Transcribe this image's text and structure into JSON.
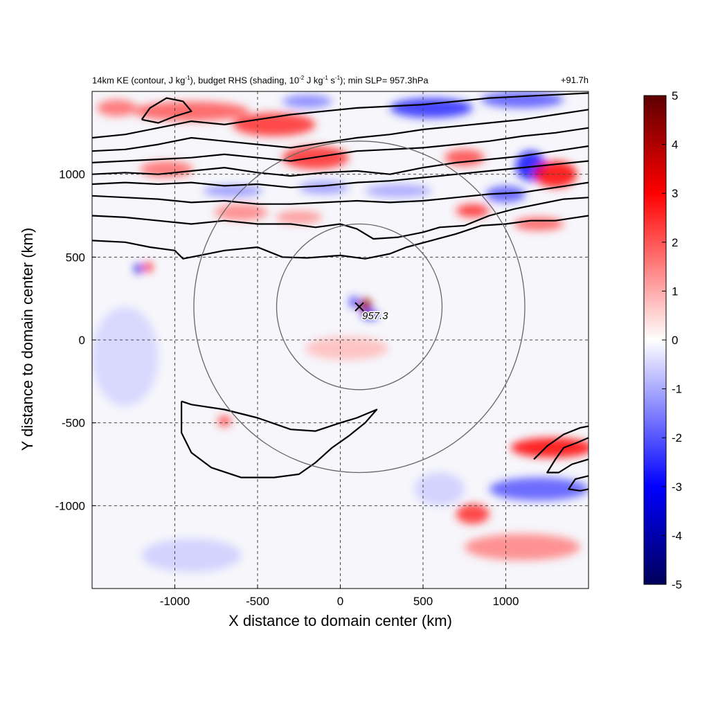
{
  "title_parts": {
    "p1": "14km KE (contour, J kg",
    "p1_sup": "-1",
    "p2": "), budget RHS (shading, 10",
    "p2_sup": "-2",
    "p3": " J kg",
    "p3_sup": "-1",
    "p4": " s",
    "p4_sup": "-1",
    "p5": "); min SLP= 957.3hPa"
  },
  "forecast_hour": "+91.7h",
  "chart_data": {
    "type": "heatmap",
    "xlabel": "X distance to domain center (km)",
    "ylabel": "Y distance to domain center (km)",
    "xlim": [
      -1500,
      1500
    ],
    "ylim": [
      -1500,
      1500
    ],
    "x_ticks": [
      -1000,
      -500,
      0,
      500,
      1000
    ],
    "y_ticks": [
      -1000,
      -500,
      0,
      500,
      1000
    ],
    "x_tick_labels": [
      "-1000",
      "-500",
      "0",
      "500",
      "1000"
    ],
    "y_tick_labels": [
      "-1000",
      "-500",
      "0",
      "500",
      "1000"
    ],
    "grid": "dashed",
    "colorbar": {
      "min": -5,
      "max": 5,
      "ticks": [
        5,
        4,
        3,
        2,
        1,
        0,
        -1,
        -2,
        -3,
        -4,
        -5
      ],
      "tick_labels": [
        "5",
        "4",
        "3",
        "2",
        "1",
        "0",
        "-1",
        "-2",
        "-3",
        "-4",
        "-5"
      ],
      "colormap": [
        "#00005a",
        "#0000ff",
        "#ffffff",
        "#ff0000",
        "#6a0000"
      ]
    },
    "storm_center": {
      "x": 115,
      "y": 200,
      "label": "957.3",
      "marker": "x"
    },
    "range_rings": [
      {
        "center_x": 115,
        "center_y": 200,
        "radius": 500
      },
      {
        "center_x": 115,
        "center_y": 200,
        "radius": 1000
      }
    ],
    "ke_contours": [
      [
        [
          -1500,
          600
        ],
        [
          -1300,
          590
        ],
        [
          -1150,
          560
        ],
        [
          -1000,
          540
        ],
        [
          -950,
          490
        ],
        [
          -850,
          510
        ],
        [
          -700,
          540
        ],
        [
          -500,
          560
        ],
        [
          -350,
          500
        ],
        [
          -200,
          495
        ],
        [
          0,
          510
        ],
        [
          150,
          490
        ],
        [
          300,
          520
        ],
        [
          400,
          560
        ],
        [
          550,
          600
        ],
        [
          700,
          640
        ],
        [
          850,
          690
        ],
        [
          1000,
          700
        ],
        [
          1150,
          720
        ],
        [
          1300,
          720
        ],
        [
          1500,
          750
        ]
      ],
      [
        [
          -1500,
          750
        ],
        [
          -1300,
          740
        ],
        [
          -1100,
          720
        ],
        [
          -900,
          700
        ],
        [
          -700,
          720
        ],
        [
          -500,
          700
        ],
        [
          -300,
          700
        ],
        [
          -150,
          680
        ],
        [
          0,
          700
        ],
        [
          100,
          670
        ],
        [
          150,
          640
        ],
        [
          200,
          610
        ],
        [
          350,
          620
        ],
        [
          500,
          650
        ],
        [
          600,
          680
        ],
        [
          750,
          690
        ],
        [
          900,
          750
        ],
        [
          1050,
          790
        ],
        [
          1200,
          820
        ],
        [
          1350,
          850
        ],
        [
          1500,
          860
        ]
      ],
      [
        [
          -1500,
          870
        ],
        [
          -1300,
          860
        ],
        [
          -1100,
          850
        ],
        [
          -900,
          830
        ],
        [
          -700,
          840
        ],
        [
          -500,
          820
        ],
        [
          -300,
          820
        ],
        [
          -100,
          830
        ],
        [
          100,
          840
        ],
        [
          300,
          830
        ],
        [
          500,
          840
        ],
        [
          700,
          860
        ],
        [
          900,
          880
        ],
        [
          1100,
          890
        ],
        [
          1300,
          920
        ],
        [
          1500,
          950
        ]
      ],
      [
        [
          -1500,
          940
        ],
        [
          -1300,
          950
        ],
        [
          -1100,
          940
        ],
        [
          -900,
          950
        ],
        [
          -700,
          930
        ],
        [
          -500,
          940
        ],
        [
          -300,
          920
        ],
        [
          -100,
          930
        ],
        [
          100,
          950
        ],
        [
          300,
          960
        ],
        [
          500,
          980
        ],
        [
          700,
          1000
        ],
        [
          900,
          1020
        ],
        [
          1100,
          1040
        ],
        [
          1300,
          1060
        ],
        [
          1500,
          1080
        ]
      ],
      [
        [
          -1500,
          1000
        ],
        [
          -1300,
          1010
        ],
        [
          -1100,
          1000
        ],
        [
          -900,
          1020
        ],
        [
          -700,
          1040
        ],
        [
          -500,
          1010
        ],
        [
          -300,
          990
        ],
        [
          -100,
          1010
        ],
        [
          100,
          1020
        ],
        [
          300,
          1000
        ],
        [
          500,
          1040
        ],
        [
          700,
          1070
        ],
        [
          900,
          1090
        ],
        [
          1100,
          1110
        ],
        [
          1300,
          1140
        ],
        [
          1500,
          1170
        ]
      ],
      [
        [
          -1500,
          1070
        ],
        [
          -1300,
          1080
        ],
        [
          -1100,
          1090
        ],
        [
          -900,
          1100
        ],
        [
          -700,
          1120
        ],
        [
          -500,
          1100
        ],
        [
          -300,
          1080
        ],
        [
          -100,
          1110
        ],
        [
          100,
          1140
        ],
        [
          300,
          1150
        ],
        [
          500,
          1160
        ],
        [
          700,
          1180
        ],
        [
          900,
          1200
        ],
        [
          1100,
          1230
        ],
        [
          1300,
          1250
        ],
        [
          1500,
          1280
        ]
      ],
      [
        [
          -1500,
          1140
        ],
        [
          -1300,
          1150
        ],
        [
          -1100,
          1180
        ],
        [
          -900,
          1220
        ],
        [
          -700,
          1200
        ],
        [
          -500,
          1180
        ],
        [
          -300,
          1160
        ],
        [
          -100,
          1190
        ],
        [
          100,
          1220
        ],
        [
          300,
          1240
        ],
        [
          500,
          1270
        ],
        [
          700,
          1290
        ],
        [
          900,
          1310
        ],
        [
          1100,
          1330
        ],
        [
          1300,
          1360
        ],
        [
          1500,
          1390
        ]
      ],
      [
        [
          -1500,
          1220
        ],
        [
          -1300,
          1240
        ],
        [
          -1100,
          1280
        ],
        [
          -900,
          1320
        ],
        [
          -700,
          1300
        ],
        [
          -500,
          1330
        ],
        [
          -300,
          1360
        ],
        [
          -100,
          1380
        ],
        [
          100,
          1400
        ],
        [
          300,
          1410
        ],
        [
          500,
          1420
        ],
        [
          700,
          1440
        ],
        [
          900,
          1460
        ],
        [
          1100,
          1470
        ],
        [
          1300,
          1480
        ],
        [
          1500,
          1490
        ]
      ],
      [
        [
          -1200,
          1330
        ],
        [
          -1150,
          1400
        ],
        [
          -1050,
          1460
        ],
        [
          -950,
          1440
        ],
        [
          -900,
          1380
        ],
        [
          -1000,
          1350
        ],
        [
          -1100,
          1310
        ],
        [
          -1200,
          1330
        ]
      ],
      [
        [
          -960,
          -370
        ],
        [
          -900,
          -390
        ],
        [
          -700,
          -420
        ],
        [
          -500,
          -470
        ],
        [
          -300,
          -540
        ],
        [
          -150,
          -550
        ],
        [
          0,
          -500
        ],
        [
          100,
          -470
        ],
        [
          220,
          -420
        ],
        [
          150,
          -500
        ],
        [
          50,
          -580
        ],
        [
          -50,
          -650
        ],
        [
          -150,
          -740
        ],
        [
          -250,
          -810
        ],
        [
          -400,
          -830
        ],
        [
          -600,
          -830
        ],
        [
          -780,
          -770
        ],
        [
          -900,
          -680
        ],
        [
          -960,
          -560
        ],
        [
          -960,
          -370
        ]
      ],
      [
        [
          1170,
          -720
        ],
        [
          1250,
          -640
        ],
        [
          1350,
          -570
        ],
        [
          1450,
          -530
        ],
        [
          1500,
          -520
        ]
      ],
      [
        [
          1500,
          -590
        ],
        [
          1430,
          -620
        ],
        [
          1350,
          -650
        ],
        [
          1300,
          -720
        ],
        [
          1250,
          -800
        ],
        [
          1320,
          -800
        ],
        [
          1400,
          -750
        ],
        [
          1500,
          -720
        ]
      ],
      [
        [
          1500,
          -820
        ],
        [
          1420,
          -840
        ],
        [
          1380,
          -900
        ],
        [
          1450,
          -910
        ],
        [
          1500,
          -900
        ]
      ]
    ],
    "shading_patches": [
      {
        "x": -900,
        "y": 1380,
        "rx": 350,
        "ry": 60,
        "v": 2
      },
      {
        "x": -400,
        "y": 1300,
        "rx": 250,
        "ry": 70,
        "v": 2.5
      },
      {
        "x": -150,
        "y": 1100,
        "rx": 200,
        "ry": 70,
        "v": 2.5
      },
      {
        "x": -1050,
        "y": 1030,
        "rx": 160,
        "ry": 50,
        "v": 1.8
      },
      {
        "x": -600,
        "y": 770,
        "rx": 160,
        "ry": 50,
        "v": 1.5
      },
      {
        "x": -250,
        "y": 740,
        "rx": 140,
        "ry": 40,
        "v": 1.3
      },
      {
        "x": -650,
        "y": 900,
        "rx": 180,
        "ry": 35,
        "v": -1.3
      },
      {
        "x": -100,
        "y": 920,
        "rx": 150,
        "ry": 40,
        "v": -1.2
      },
      {
        "x": 350,
        "y": 900,
        "rx": 200,
        "ry": 40,
        "v": -1.1
      },
      {
        "x": 750,
        "y": 1100,
        "rx": 120,
        "ry": 50,
        "v": 2.2
      },
      {
        "x": 1150,
        "y": 1050,
        "rx": 90,
        "ry": 90,
        "v": -2.8
      },
      {
        "x": 1300,
        "y": 1000,
        "rx": 130,
        "ry": 80,
        "v": 3.0
      },
      {
        "x": 1000,
        "y": 880,
        "rx": 120,
        "ry": 50,
        "v": -2.0
      },
      {
        "x": 800,
        "y": 780,
        "rx": 100,
        "ry": 40,
        "v": 2.5
      },
      {
        "x": 1200,
        "y": 700,
        "rx": 150,
        "ry": 40,
        "v": 2.0
      },
      {
        "x": 550,
        "y": 1400,
        "rx": 250,
        "ry": 60,
        "v": -2.5
      },
      {
        "x": 1100,
        "y": 1450,
        "rx": 250,
        "ry": 50,
        "v": -2.0
      },
      {
        "x": -200,
        "y": 1440,
        "rx": 150,
        "ry": 40,
        "v": -1.5
      },
      {
        "x": -1350,
        "y": 1400,
        "rx": 120,
        "ry": 50,
        "v": 1.8
      },
      {
        "x": -1220,
        "y": 430,
        "rx": 25,
        "ry": 30,
        "v": -3.5
      },
      {
        "x": -1160,
        "y": 440,
        "rx": 25,
        "ry": 30,
        "v": 3.0
      },
      {
        "x": 150,
        "y": 210,
        "rx": 40,
        "ry": 40,
        "v": 4.5
      },
      {
        "x": 180,
        "y": 150,
        "rx": 50,
        "ry": 25,
        "v": -3.0
      },
      {
        "x": 80,
        "y": 230,
        "rx": 25,
        "ry": 35,
        "v": -2.5
      },
      {
        "x": 40,
        "y": -50,
        "rx": 250,
        "ry": 70,
        "v": 0.8
      },
      {
        "x": -700,
        "y": -490,
        "rx": 40,
        "ry": 30,
        "v": 2.5
      },
      {
        "x": 1280,
        "y": -650,
        "rx": 250,
        "ry": 60,
        "v": 3.0
      },
      {
        "x": 1200,
        "y": -900,
        "rx": 300,
        "ry": 70,
        "v": -2.0
      },
      {
        "x": 1100,
        "y": -1250,
        "rx": 350,
        "ry": 80,
        "v": 1.5
      },
      {
        "x": 800,
        "y": -1050,
        "rx": 100,
        "ry": 60,
        "v": 2.5
      },
      {
        "x": -900,
        "y": -1300,
        "rx": 300,
        "ry": 100,
        "v": -0.6
      },
      {
        "x": -1300,
        "y": -100,
        "rx": 200,
        "ry": 300,
        "v": -0.5
      },
      {
        "x": 600,
        "y": -900,
        "rx": 150,
        "ry": 100,
        "v": -0.6
      }
    ]
  }
}
